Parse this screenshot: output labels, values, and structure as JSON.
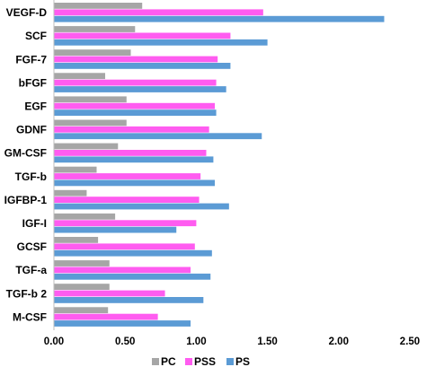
{
  "chart_data": {
    "type": "bar",
    "orientation": "horizontal",
    "categories": [
      "VEGF-D",
      "SCF",
      "FGF-7",
      "bFGF",
      "EGF",
      "GDNF",
      "GM-CSF",
      "TGF-b",
      "IGFBP-1",
      "IGF-I",
      "GCSF",
      "TGF-a",
      "TGF-b 2",
      "M-CSF"
    ],
    "series": [
      {
        "name": "PC",
        "color": "#a6a6a6",
        "values": [
          0.62,
          0.57,
          0.54,
          0.36,
          0.51,
          0.51,
          0.45,
          0.3,
          0.23,
          0.43,
          0.31,
          0.39,
          0.39,
          0.38
        ]
      },
      {
        "name": "PSS",
        "color": "#ff5cf0",
        "values": [
          1.47,
          1.24,
          1.15,
          1.14,
          1.13,
          1.09,
          1.07,
          1.03,
          1.02,
          1.0,
          0.99,
          0.96,
          0.78,
          0.73
        ]
      },
      {
        "name": "PS",
        "color": "#5b9bd5",
        "values": [
          2.32,
          1.5,
          1.24,
          1.21,
          1.14,
          1.46,
          1.12,
          1.13,
          1.23,
          0.86,
          1.11,
          1.1,
          1.05,
          0.96
        ]
      }
    ],
    "xlim": [
      0,
      2.5
    ],
    "xticks": [
      "0.00",
      "0.50",
      "1.00",
      "1.50",
      "2.00",
      "2.50"
    ],
    "xlabel": "",
    "ylabel": "",
    "title": "",
    "grid": false,
    "legend": "bottom"
  }
}
